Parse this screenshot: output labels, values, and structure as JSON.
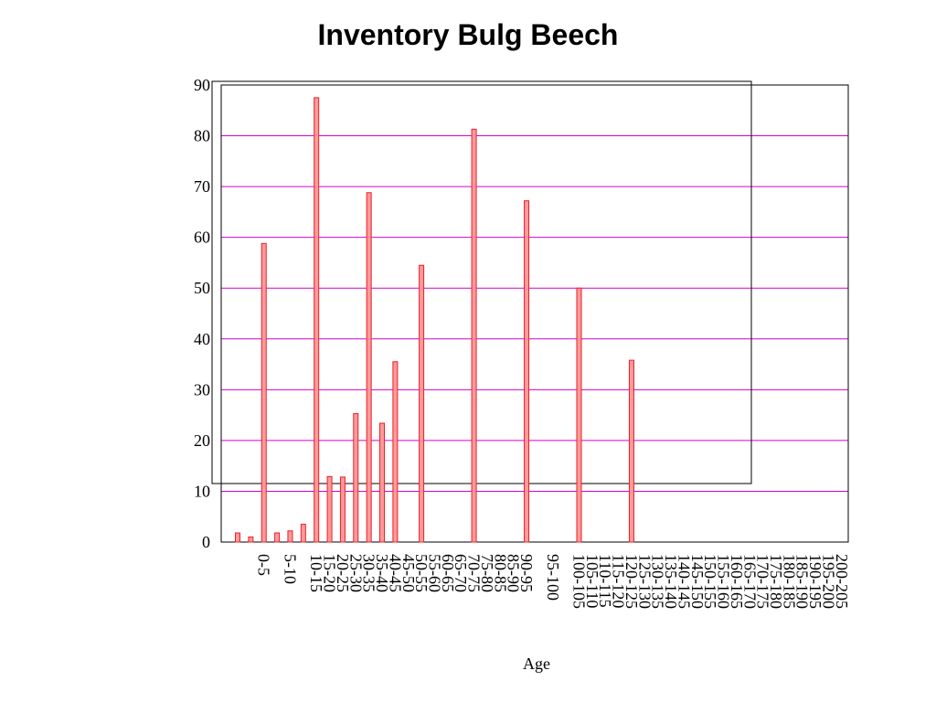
{
  "chart_data": {
    "type": "bar",
    "title": "Inventory Bulg Beech",
    "xlabel": "Age",
    "ylabel": "",
    "ylim": [
      0,
      90
    ],
    "yticks": [
      0,
      10,
      20,
      30,
      40,
      50,
      60,
      70,
      80,
      90
    ],
    "grid": true,
    "legend": "none",
    "colors": {
      "bar_fill": "#ff9a9a",
      "bar_stroke": "#e8202a",
      "grid": "#d400d4",
      "frame": "#000000"
    },
    "categories": [
      "",
      "",
      "0-5",
      "",
      "5-10",
      "",
      "10-15",
      "15-20",
      "20-25",
      "25-30",
      "30-35",
      "35-40",
      "40-45",
      "45-50",
      "50-55",
      "55-60",
      "60-65",
      "65-70",
      "70-75",
      "75-80",
      "80-85",
      "85-90",
      "90-95",
      "",
      "95-100",
      "",
      "100-105",
      "105-110",
      "110-115",
      "115-120",
      "120-125",
      "125-130",
      "130-135",
      "135-140",
      "140-145",
      "145-150",
      "150-155",
      "155-160",
      "160-165",
      "165-170",
      "170-175",
      "175-180",
      "180-185",
      "185-190",
      "190-195",
      "195-200",
      "200-205"
    ],
    "values": [
      1.8,
      1.0,
      58.8,
      1.8,
      2.2,
      3.5,
      87.5,
      12.9,
      12.8,
      25.3,
      68.8,
      23.4,
      35.5,
      0,
      54.5,
      0,
      0,
      0,
      81.3,
      0,
      0,
      0,
      67.2,
      0,
      0,
      0,
      50.0,
      0,
      0,
      0,
      35.8,
      0,
      0,
      0,
      0,
      0,
      0,
      0,
      0,
      0,
      0,
      0,
      0,
      0,
      0,
      0,
      0
    ]
  }
}
